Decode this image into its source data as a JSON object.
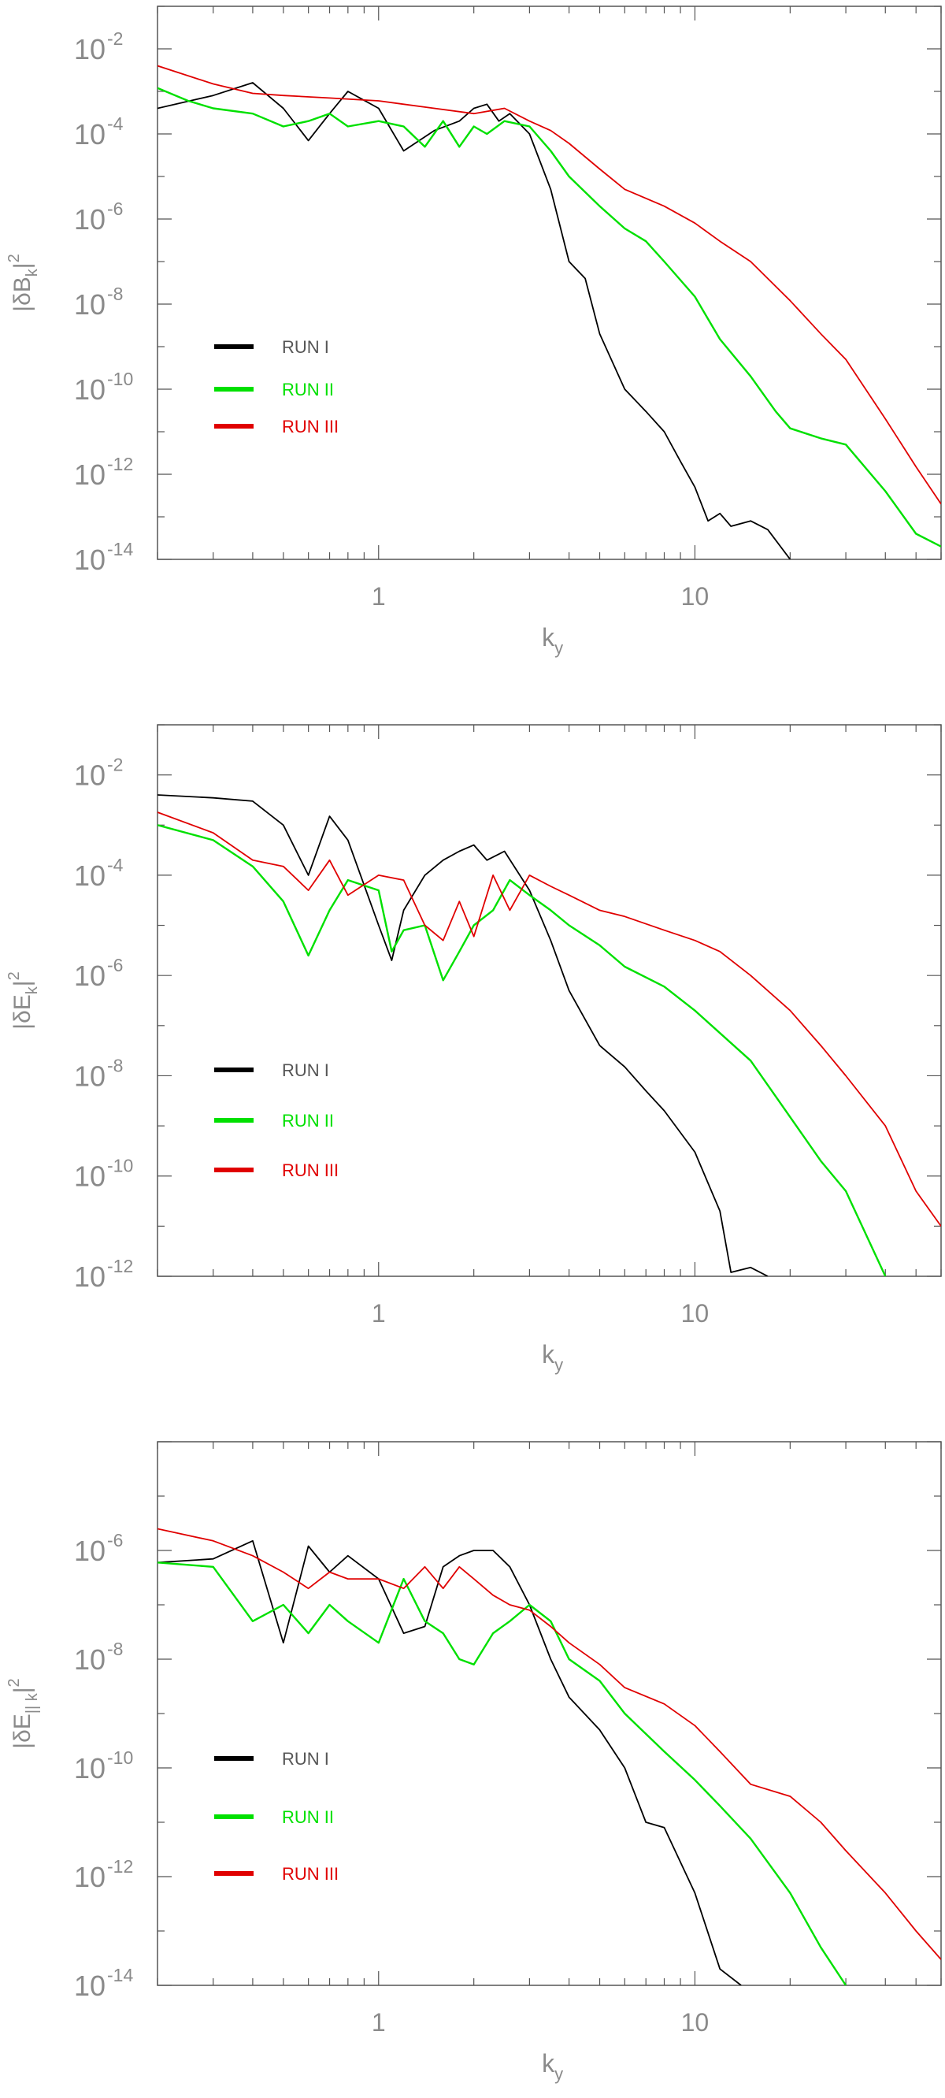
{
  "legend_entries": [
    {
      "label": "RUN I",
      "color": "#000000"
    },
    {
      "label": "RUN II",
      "color": "#00e000"
    },
    {
      "label": "RUN III",
      "color": "#e00000"
    }
  ],
  "chart_data": [
    {
      "type": "line",
      "xscale": "log",
      "yscale": "log",
      "xlim": [
        0.2,
        60
      ],
      "ylim": [
        1e-14,
        0.1
      ],
      "xticks": [
        1,
        10
      ],
      "xtick_labels": [
        "1",
        "10"
      ],
      "yticks": [
        -2,
        -4,
        -6,
        -8,
        -10,
        -12,
        -14
      ],
      "ytick_labels": [
        "10",
        "10",
        "10",
        "10",
        "10",
        "10",
        "10"
      ],
      "ytick_exponents": [
        "-2",
        "-4",
        "-6",
        "-8",
        "-10",
        "-12",
        "-14"
      ],
      "xlabel": "k",
      "xlabel_sub": "y",
      "ylabel": "|δB",
      "ylabel_sub": "k",
      "ylabel_tail": "|",
      "ylabel_sup": "2",
      "grid": false,
      "legend_position": "lower-left",
      "series": [
        {
          "name": "RUN I",
          "color": "#000000",
          "x": [
            0.2,
            0.3,
            0.4,
            0.5,
            0.6,
            0.7,
            0.8,
            1.0,
            1.2,
            1.5,
            1.8,
            2.0,
            2.2,
            2.4,
            2.6,
            3.0,
            3.5,
            4.0,
            4.5,
            5.0,
            6.0,
            7.0,
            8.0,
            9.0,
            10.0,
            11.0,
            12.0,
            13.0,
            15.0,
            17.0,
            20.0
          ],
          "y": [
            0.0004,
            0.0008,
            0.0016,
            0.0004,
            7e-05,
            0.0003,
            0.001,
            0.0004,
            4e-05,
            0.00012,
            0.0002,
            0.0004,
            0.0005,
            0.0002,
            0.0003,
            0.0001,
            5e-06,
            1e-07,
            4e-08,
            2e-09,
            1e-10,
            3e-11,
            1e-11,
            2e-12,
            5e-13,
            8e-14,
            1.2e-13,
            6e-14,
            8e-14,
            5e-14,
            1e-14
          ]
        },
        {
          "name": "RUN II",
          "color": "#00e000",
          "x": [
            0.2,
            0.25,
            0.3,
            0.4,
            0.5,
            0.6,
            0.7,
            0.8,
            1.0,
            1.2,
            1.4,
            1.6,
            1.8,
            2.0,
            2.2,
            2.5,
            3.0,
            3.5,
            4.0,
            5.0,
            6.0,
            7.0,
            8.0,
            10.0,
            12.0,
            15.0,
            18.0,
            20.0,
            25.0,
            30.0,
            40.0,
            50.0,
            60.0
          ],
          "y": [
            0.0012,
            0.0006,
            0.0004,
            0.0003,
            0.00015,
            0.0002,
            0.0003,
            0.00015,
            0.0002,
            0.00015,
            5e-05,
            0.0002,
            5e-05,
            0.00015,
            0.0001,
            0.0002,
            0.00015,
            4e-05,
            1e-05,
            2e-06,
            6e-07,
            3e-07,
            1e-07,
            1.5e-08,
            1.5e-09,
            2e-10,
            3e-11,
            1.2e-11,
            7e-12,
            5e-12,
            4e-13,
            4e-14,
            2e-14
          ]
        },
        {
          "name": "RUN III",
          "color": "#e00000",
          "x": [
            0.2,
            0.3,
            0.4,
            0.5,
            0.7,
            1.0,
            1.5,
            2.0,
            2.5,
            3.0,
            3.5,
            4.0,
            5.0,
            6.0,
            8.0,
            10.0,
            12.0,
            15.0,
            20.0,
            25.0,
            30.0,
            40.0,
            50.0,
            60.0
          ],
          "y": [
            0.004,
            0.0015,
            0.0009,
            0.0008,
            0.0007,
            0.0006,
            0.0004,
            0.0003,
            0.0004,
            0.0002,
            0.00012,
            6e-05,
            1.5e-05,
            5e-06,
            2e-06,
            8e-07,
            3e-07,
            1e-07,
            1.2e-08,
            2e-09,
            5e-10,
            2e-11,
            1.5e-12,
            2e-13
          ]
        }
      ]
    },
    {
      "type": "line",
      "xscale": "log",
      "yscale": "log",
      "xlim": [
        0.2,
        60
      ],
      "ylim": [
        1e-12,
        0.1
      ],
      "xticks": [
        1,
        10
      ],
      "xtick_labels": [
        "1",
        "10"
      ],
      "yticks": [
        -2,
        -4,
        -6,
        -8,
        -10,
        -12
      ],
      "ytick_labels": [
        "10",
        "10",
        "10",
        "10",
        "10",
        "10"
      ],
      "ytick_exponents": [
        "-2",
        "-4",
        "-6",
        "-8",
        "-10",
        "-12"
      ],
      "xlabel": "k",
      "xlabel_sub": "y",
      "ylabel": "|δE",
      "ylabel_sub": "k",
      "ylabel_tail": "|",
      "ylabel_sup": "2",
      "grid": false,
      "legend_position": "lower-left",
      "series": [
        {
          "name": "RUN I",
          "color": "#000000",
          "x": [
            0.2,
            0.3,
            0.4,
            0.5,
            0.6,
            0.7,
            0.8,
            1.0,
            1.1,
            1.2,
            1.4,
            1.6,
            1.8,
            2.0,
            2.2,
            2.5,
            3.0,
            3.5,
            4.0,
            5.0,
            6.0,
            7.0,
            8.0,
            10.0,
            12.0,
            13.0,
            15.0,
            17.0
          ],
          "y": [
            0.004,
            0.0035,
            0.003,
            0.001,
            0.0001,
            0.0015,
            0.0005,
            1e-05,
            2e-06,
            2e-05,
            0.0001,
            0.0002,
            0.0003,
            0.0004,
            0.0002,
            0.0003,
            5e-05,
            5e-06,
            5e-07,
            4e-08,
            1.5e-08,
            5e-09,
            2e-09,
            3e-10,
            2e-11,
            1.2e-12,
            1.5e-12,
            1e-12
          ]
        },
        {
          "name": "RUN II",
          "color": "#00e000",
          "x": [
            0.2,
            0.3,
            0.4,
            0.5,
            0.6,
            0.7,
            0.8,
            1.0,
            1.1,
            1.2,
            1.4,
            1.6,
            1.8,
            2.0,
            2.3,
            2.6,
            3.0,
            3.5,
            4.0,
            5.0,
            6.0,
            8.0,
            10.0,
            15.0,
            20.0,
            25.0,
            30.0,
            40.0
          ],
          "y": [
            0.001,
            0.0005,
            0.00015,
            3e-05,
            2.5e-06,
            2e-05,
            8e-05,
            5e-05,
            3e-06,
            8e-06,
            1e-05,
            8e-07,
            3e-06,
            1e-05,
            2e-05,
            8e-05,
            4e-05,
            2e-05,
            1e-05,
            4e-06,
            1.5e-06,
            6e-07,
            2e-07,
            2e-08,
            1.5e-09,
            2e-10,
            5e-11,
            1e-12
          ]
        },
        {
          "name": "RUN III",
          "color": "#e00000",
          "x": [
            0.2,
            0.3,
            0.4,
            0.5,
            0.6,
            0.7,
            0.8,
            1.0,
            1.2,
            1.4,
            1.6,
            1.8,
            2.0,
            2.3,
            2.6,
            3.0,
            3.5,
            4.0,
            5.0,
            6.0,
            8.0,
            10.0,
            12.0,
            15.0,
            20.0,
            25.0,
            30.0,
            40.0,
            50.0,
            60.0
          ],
          "y": [
            0.0018,
            0.0007,
            0.0002,
            0.00015,
            5e-05,
            0.0002,
            4e-05,
            0.0001,
            8e-05,
            1e-05,
            5e-06,
            3e-05,
            6e-06,
            0.0001,
            2e-05,
            0.0001,
            6e-05,
            4e-05,
            2e-05,
            1.5e-05,
            8e-06,
            5e-06,
            3e-06,
            1e-06,
            2e-07,
            4e-08,
            1e-08,
            1e-09,
            5e-11,
            1e-11
          ]
        }
      ]
    },
    {
      "type": "line",
      "xscale": "log",
      "yscale": "log",
      "xlim": [
        0.2,
        60
      ],
      "ylim": [
        1e-14,
        0.0001
      ],
      "xticks": [
        1,
        10
      ],
      "xtick_labels": [
        "1",
        "10"
      ],
      "yticks": [
        -6,
        -8,
        -10,
        -12,
        -14
      ],
      "ytick_labels": [
        "10",
        "10",
        "10",
        "10",
        "10"
      ],
      "ytick_exponents": [
        "-6",
        "-8",
        "-10",
        "-12",
        "-14"
      ],
      "xlabel": "k",
      "xlabel_sub": "y",
      "ylabel": "|δE",
      "ylabel_sub": "|| k",
      "ylabel_tail": "|",
      "ylabel_sup": "2",
      "grid": false,
      "legend_position": "lower-left",
      "series": [
        {
          "name": "RUN I",
          "color": "#000000",
          "x": [
            0.2,
            0.3,
            0.4,
            0.5,
            0.6,
            0.7,
            0.8,
            1.0,
            1.2,
            1.4,
            1.6,
            1.8,
            2.0,
            2.3,
            2.6,
            3.0,
            3.5,
            4.0,
            5.0,
            6.0,
            7.0,
            8.0,
            10.0,
            12.0,
            14.0
          ],
          "y": [
            6e-07,
            7e-07,
            1.5e-06,
            2e-08,
            1.2e-06,
            4e-07,
            8e-07,
            3e-07,
            3e-08,
            4e-08,
            5e-07,
            8e-07,
            1e-06,
            1e-06,
            5e-07,
            1e-07,
            1e-08,
            2e-09,
            5e-10,
            1e-10,
            1e-11,
            8e-12,
            5e-13,
            2e-14,
            1e-14
          ]
        },
        {
          "name": "RUN II",
          "color": "#00e000",
          "x": [
            0.2,
            0.3,
            0.4,
            0.5,
            0.6,
            0.7,
            0.8,
            1.0,
            1.2,
            1.4,
            1.6,
            1.8,
            2.0,
            2.3,
            2.6,
            3.0,
            3.5,
            4.0,
            5.0,
            6.0,
            8.0,
            10.0,
            12.0,
            15.0,
            20.0,
            25.0,
            30.0
          ],
          "y": [
            6e-07,
            5e-07,
            5e-08,
            1e-07,
            3e-08,
            1e-07,
            5e-08,
            2e-08,
            3e-07,
            5e-08,
            3e-08,
            1e-08,
            8e-09,
            3e-08,
            5e-08,
            1e-07,
            5e-08,
            1e-08,
            4e-09,
            1e-09,
            2e-10,
            6e-11,
            2e-11,
            5e-12,
            5e-13,
            5e-14,
            1e-14
          ]
        },
        {
          "name": "RUN III",
          "color": "#e00000",
          "x": [
            0.2,
            0.3,
            0.4,
            0.5,
            0.6,
            0.7,
            0.8,
            1.0,
            1.2,
            1.4,
            1.6,
            1.8,
            2.0,
            2.3,
            2.6,
            3.0,
            3.5,
            4.0,
            5.0,
            6.0,
            8.0,
            10.0,
            12.0,
            15.0,
            20.0,
            25.0,
            30.0,
            40.0,
            50.0,
            60.0
          ],
          "y": [
            2.5e-06,
            1.5e-06,
            8e-07,
            4e-07,
            2e-07,
            4e-07,
            3e-07,
            3e-07,
            2e-07,
            5e-07,
            2e-07,
            5e-07,
            3e-07,
            1.5e-07,
            1e-07,
            8e-08,
            4e-08,
            2e-08,
            8e-09,
            3e-09,
            1.5e-09,
            6e-10,
            2e-10,
            5e-11,
            3e-11,
            1e-11,
            3e-12,
            5e-13,
            1e-13,
            3e-14
          ]
        }
      ]
    }
  ]
}
